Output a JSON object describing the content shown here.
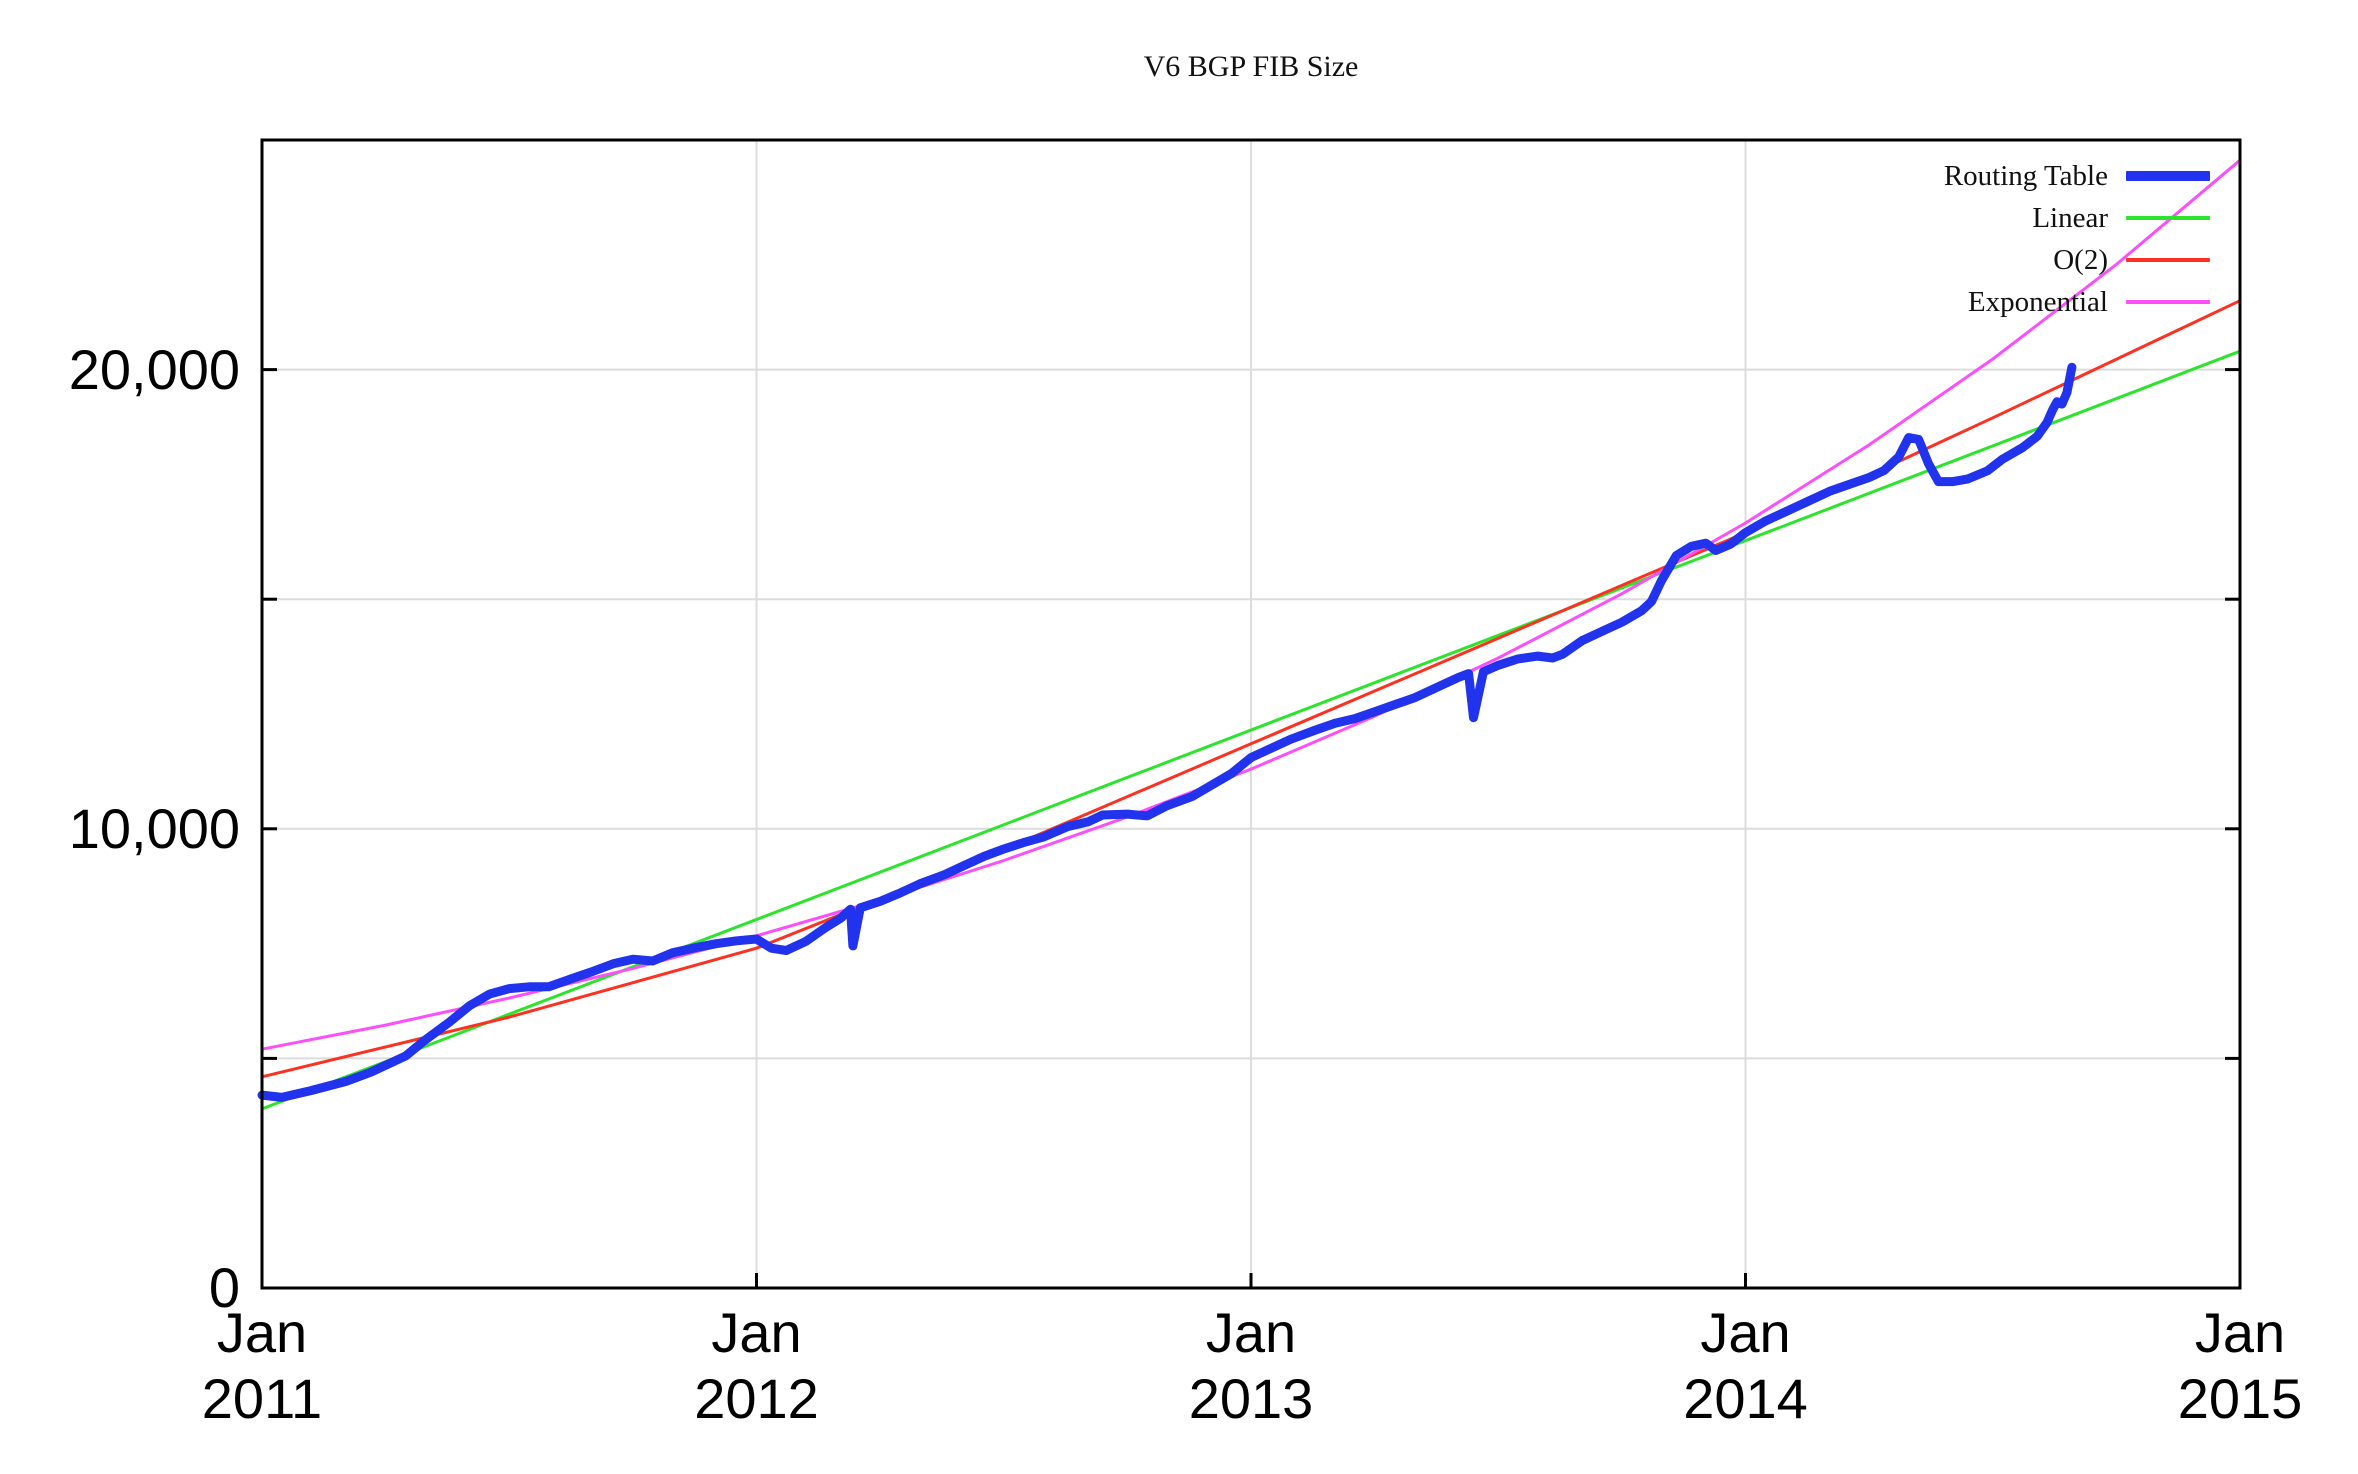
{
  "chart_data": {
    "type": "line",
    "title": "V6 BGP FIB Size",
    "background": "#ffffff",
    "style": {
      "grid_color": "#dcdcdc",
      "border_color": "#000000",
      "tick_color": "#000000"
    },
    "x_axis": {
      "unit": "years since Jan 2011",
      "range": [
        0,
        4
      ],
      "gridlines": [
        1,
        2,
        3
      ],
      "ticks": [
        {
          "t": 0,
          "line1": "Jan",
          "line2": "2011"
        },
        {
          "t": 1,
          "line1": "Jan",
          "line2": "2012"
        },
        {
          "t": 2,
          "line1": "Jan",
          "line2": "2013"
        },
        {
          "t": 3,
          "line1": "Jan",
          "line2": "2014"
        },
        {
          "t": 4,
          "line1": "Jan",
          "line2": "2015"
        }
      ]
    },
    "y_axis": {
      "range": [
        0,
        25000
      ],
      "gridlines": [
        5000,
        10000,
        15000,
        20000
      ],
      "ticks": [
        {
          "value": 0,
          "label": "0"
        },
        {
          "value": 10000,
          "label": "10,000"
        },
        {
          "value": 20000,
          "label": "20,000"
        }
      ]
    },
    "legend": [
      {
        "name": "Routing Table",
        "color": "#2233ee",
        "thick": true
      },
      {
        "name": "Linear",
        "color": "#2be42b",
        "thick": false
      },
      {
        "name": "O(2)",
        "color": "#fb3222",
        "thick": false
      },
      {
        "name": "Exponential",
        "color": "#fc4ffc",
        "thick": false
      }
    ],
    "series": [
      {
        "name": "Linear",
        "color": "#2be42b",
        "width": 3,
        "points": [
          [
            0,
            3900
          ],
          [
            4,
            20400
          ]
        ]
      },
      {
        "name": "O(2)",
        "color": "#fb3222",
        "width": 3,
        "points": [
          [
            0,
            4600
          ],
          [
            0.5,
            5900
          ],
          [
            1,
            7400
          ],
          [
            1.5,
            9550
          ],
          [
            2,
            11850
          ],
          [
            2.5,
            14150
          ],
          [
            3,
            16450
          ],
          [
            3.5,
            18950
          ],
          [
            4,
            21500
          ]
        ]
      },
      {
        "name": "Exponential",
        "color": "#fc4ffc",
        "width": 3,
        "points": [
          [
            0,
            5200
          ],
          [
            0.25,
            5725
          ],
          [
            0.5,
            6315
          ],
          [
            0.75,
            6960
          ],
          [
            1,
            7670
          ],
          [
            1.25,
            8450
          ],
          [
            1.5,
            9310
          ],
          [
            1.75,
            10260
          ],
          [
            2,
            11300
          ],
          [
            2.25,
            12450
          ],
          [
            2.5,
            13720
          ],
          [
            2.75,
            15120
          ],
          [
            3,
            16660
          ],
          [
            3.25,
            18360
          ],
          [
            3.5,
            20230
          ],
          [
            3.75,
            22290
          ],
          [
            4,
            24560
          ]
        ]
      },
      {
        "name": "Routing Table",
        "color": "#2233ee",
        "width": 9,
        "points": [
          [
            0.0,
            4200
          ],
          [
            0.04,
            4150
          ],
          [
            0.1,
            4300
          ],
          [
            0.17,
            4500
          ],
          [
            0.22,
            4700
          ],
          [
            0.25,
            4850
          ],
          [
            0.29,
            5050
          ],
          [
            0.33,
            5400
          ],
          [
            0.38,
            5800
          ],
          [
            0.42,
            6150
          ],
          [
            0.46,
            6400
          ],
          [
            0.5,
            6520
          ],
          [
            0.54,
            6560
          ],
          [
            0.58,
            6560
          ],
          [
            0.63,
            6750
          ],
          [
            0.67,
            6900
          ],
          [
            0.71,
            7060
          ],
          [
            0.75,
            7160
          ],
          [
            0.79,
            7120
          ],
          [
            0.83,
            7300
          ],
          [
            0.88,
            7420
          ],
          [
            0.92,
            7500
          ],
          [
            0.96,
            7560
          ],
          [
            1.0,
            7600
          ],
          [
            1.03,
            7400
          ],
          [
            1.06,
            7350
          ],
          [
            1.1,
            7550
          ],
          [
            1.14,
            7850
          ],
          [
            1.17,
            8050
          ],
          [
            1.19,
            8250
          ],
          [
            1.195,
            7450
          ],
          [
            1.21,
            8280
          ],
          [
            1.25,
            8420
          ],
          [
            1.29,
            8600
          ],
          [
            1.33,
            8800
          ],
          [
            1.38,
            9000
          ],
          [
            1.42,
            9200
          ],
          [
            1.46,
            9400
          ],
          [
            1.5,
            9560
          ],
          [
            1.54,
            9700
          ],
          [
            1.58,
            9820
          ],
          [
            1.63,
            10050
          ],
          [
            1.67,
            10150
          ],
          [
            1.7,
            10300
          ],
          [
            1.75,
            10320
          ],
          [
            1.79,
            10280
          ],
          [
            1.83,
            10500
          ],
          [
            1.88,
            10700
          ],
          [
            1.92,
            10950
          ],
          [
            1.96,
            11200
          ],
          [
            2.0,
            11550
          ],
          [
            2.04,
            11750
          ],
          [
            2.08,
            11950
          ],
          [
            2.13,
            12150
          ],
          [
            2.17,
            12300
          ],
          [
            2.21,
            12400
          ],
          [
            2.25,
            12550
          ],
          [
            2.29,
            12700
          ],
          [
            2.33,
            12850
          ],
          [
            2.38,
            13100
          ],
          [
            2.42,
            13300
          ],
          [
            2.44,
            13380
          ],
          [
            2.45,
            12420
          ],
          [
            2.47,
            13420
          ],
          [
            2.5,
            13560
          ],
          [
            2.54,
            13700
          ],
          [
            2.58,
            13760
          ],
          [
            2.61,
            13720
          ],
          [
            2.63,
            13800
          ],
          [
            2.67,
            14100
          ],
          [
            2.71,
            14300
          ],
          [
            2.75,
            14500
          ],
          [
            2.79,
            14750
          ],
          [
            2.81,
            14950
          ],
          [
            2.83,
            15400
          ],
          [
            2.86,
            15950
          ],
          [
            2.89,
            16150
          ],
          [
            2.92,
            16220
          ],
          [
            2.94,
            16060
          ],
          [
            2.97,
            16200
          ],
          [
            3.0,
            16450
          ],
          [
            3.04,
            16700
          ],
          [
            3.08,
            16900
          ],
          [
            3.13,
            17150
          ],
          [
            3.17,
            17350
          ],
          [
            3.21,
            17500
          ],
          [
            3.25,
            17650
          ],
          [
            3.28,
            17800
          ],
          [
            3.31,
            18100
          ],
          [
            3.33,
            18520
          ],
          [
            3.35,
            18480
          ],
          [
            3.37,
            17950
          ],
          [
            3.39,
            17560
          ],
          [
            3.42,
            17560
          ],
          [
            3.45,
            17620
          ],
          [
            3.49,
            17800
          ],
          [
            3.52,
            18050
          ],
          [
            3.56,
            18300
          ],
          [
            3.59,
            18550
          ],
          [
            3.61,
            18850
          ],
          [
            3.62,
            19100
          ],
          [
            3.63,
            19300
          ],
          [
            3.64,
            19250
          ],
          [
            3.65,
            19500
          ],
          [
            3.66,
            20050
          ]
        ]
      }
    ]
  }
}
